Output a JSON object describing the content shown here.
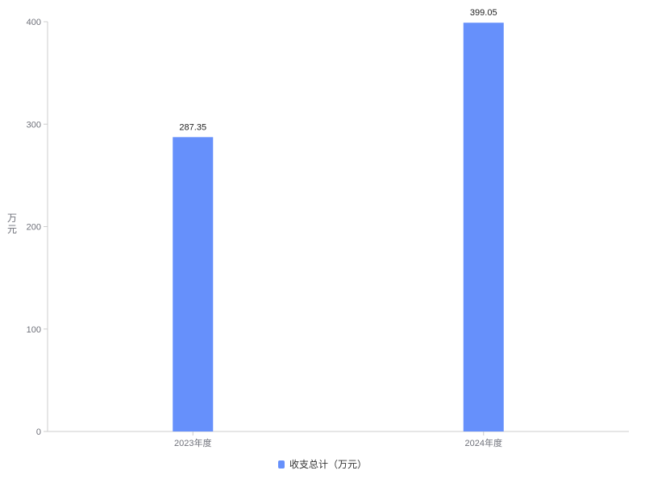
{
  "chart_data": {
    "type": "bar",
    "categories": [
      "2023年度",
      "2024年度"
    ],
    "series": [
      {
        "name": "收支总计（万元）",
        "values": [
          287.35,
          399.05
        ],
        "color": "#6690fb"
      }
    ],
    "data_labels": [
      "287.35",
      "399.05"
    ],
    "ylabel": "万元",
    "xlabel": "",
    "ylim": [
      0,
      400
    ],
    "yticks": [
      0,
      100,
      200,
      300,
      400
    ],
    "grid": false,
    "legend_position": "bottom-center"
  }
}
